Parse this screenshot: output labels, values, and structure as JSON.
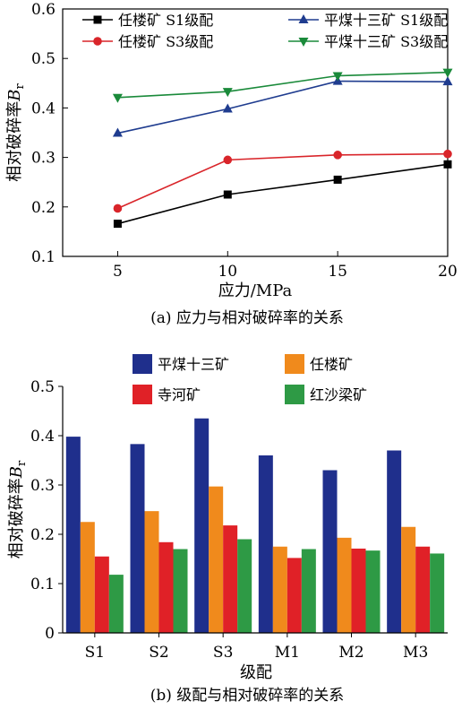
{
  "chart_data": [
    {
      "type": "line",
      "caption": "(a)  应力与相对破碎率的关系",
      "xlabel": "应力/MPa",
      "ylabel_main": "相对破碎率",
      "ylabel_var": "B",
      "ylabel_sub": "r",
      "x": [
        5,
        10,
        15,
        20
      ],
      "xticks": [
        "5",
        "10",
        "15",
        "20"
      ],
      "xlim": [
        2.5,
        20
      ],
      "ylim": [
        0.1,
        0.6
      ],
      "yticks": [
        "0.1",
        "0.2",
        "0.3",
        "0.4",
        "0.5",
        "0.6"
      ],
      "legend_position": "top",
      "series": [
        {
          "name": "任楼矿 S1级配",
          "marker": "square",
          "color": "#000000",
          "values": [
            0.166,
            0.225,
            0.255,
            0.286
          ]
        },
        {
          "name": "平煤十三矿 S1级配",
          "marker": "triangle-up",
          "color": "#1f3c8f",
          "values": [
            0.349,
            0.398,
            0.454,
            0.453
          ]
        },
        {
          "name": "任楼矿 S3级配",
          "marker": "circle",
          "color": "#d9252a",
          "values": [
            0.197,
            0.295,
            0.305,
            0.307
          ]
        },
        {
          "name": "平煤十三矿 S3级配",
          "marker": "triangle-down",
          "color": "#1a8a3a",
          "values": [
            0.421,
            0.433,
            0.465,
            0.472
          ]
        }
      ]
    },
    {
      "type": "bar",
      "caption": "(b)  级配与相对破碎率的关系",
      "xlabel": "级配",
      "ylabel_main": "相对破碎率",
      "ylabel_var": "B",
      "ylabel_sub": "r",
      "categories": [
        "S1",
        "S2",
        "S3",
        "M1",
        "M2",
        "M3"
      ],
      "ylim": [
        0,
        0.5
      ],
      "yticks": [
        "0",
        "0.1",
        "0.2",
        "0.3",
        "0.4",
        "0.5"
      ],
      "legend_position": "top",
      "series": [
        {
          "name": "平煤十三矿",
          "color": "#1f2f8c",
          "values": [
            0.398,
            0.383,
            0.435,
            0.36,
            0.33,
            0.37
          ]
        },
        {
          "name": "任楼矿",
          "color": "#f08a1c",
          "values": [
            0.225,
            0.247,
            0.297,
            0.175,
            0.193,
            0.215
          ]
        },
        {
          "name": "寺河矿",
          "color": "#e02127",
          "values": [
            0.155,
            0.184,
            0.218,
            0.152,
            0.171,
            0.175
          ]
        },
        {
          "name": "红沙梁矿",
          "color": "#2e9a45",
          "values": [
            0.118,
            0.17,
            0.19,
            0.17,
            0.167,
            0.161
          ]
        }
      ]
    }
  ]
}
